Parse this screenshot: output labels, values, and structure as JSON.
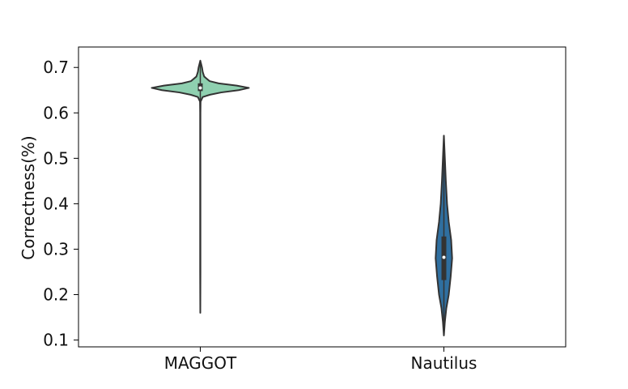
{
  "chart_data": {
    "type": "violin",
    "title": "",
    "xlabel": "",
    "ylabel": "Correctness(%)",
    "ylim": [
      0.085,
      0.745
    ],
    "yticks": [
      0.1,
      0.2,
      0.3,
      0.4,
      0.5,
      0.6,
      0.7
    ],
    "ytick_labels": [
      "0.1",
      "0.2",
      "0.3",
      "0.4",
      "0.5",
      "0.6",
      "0.7"
    ],
    "categories": [
      "MAGGOT",
      "Nautilus"
    ],
    "grid": false,
    "violins": [
      {
        "category": "MAGGOT",
        "color": "#8fd0b0",
        "min": 0.16,
        "max": 0.715,
        "q1": 0.648,
        "median": 0.655,
        "q3": 0.665,
        "density": [
          [
            0.16,
            0.0
          ],
          [
            0.25,
            0.003
          ],
          [
            0.45,
            0.003
          ],
          [
            0.6,
            0.003
          ],
          [
            0.625,
            0.006
          ],
          [
            0.635,
            0.05
          ],
          [
            0.64,
            0.2
          ],
          [
            0.645,
            0.43
          ],
          [
            0.65,
            0.79
          ],
          [
            0.655,
            1.0
          ],
          [
            0.66,
            0.75
          ],
          [
            0.665,
            0.38
          ],
          [
            0.67,
            0.19
          ],
          [
            0.68,
            0.08
          ],
          [
            0.69,
            0.05
          ],
          [
            0.7,
            0.035
          ],
          [
            0.715,
            0.0
          ]
        ]
      },
      {
        "category": "Nautilus",
        "color": "#2f6fa0",
        "min": 0.11,
        "max": 0.55,
        "q1": 0.232,
        "median": 0.282,
        "q3": 0.328,
        "density": [
          [
            0.11,
            0.0
          ],
          [
            0.14,
            0.02
          ],
          [
            0.17,
            0.05
          ],
          [
            0.2,
            0.1
          ],
          [
            0.24,
            0.14
          ],
          [
            0.28,
            0.17
          ],
          [
            0.32,
            0.15
          ],
          [
            0.36,
            0.1
          ],
          [
            0.4,
            0.065
          ],
          [
            0.45,
            0.04
          ],
          [
            0.5,
            0.02
          ],
          [
            0.55,
            0.0
          ]
        ]
      }
    ]
  }
}
